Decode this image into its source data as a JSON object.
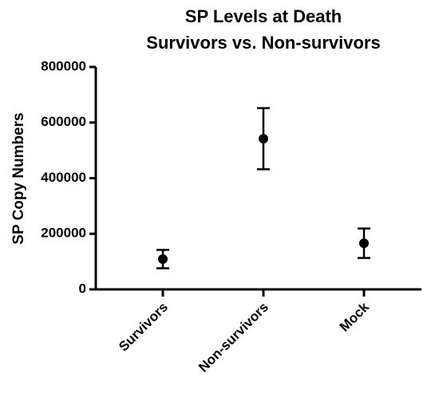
{
  "chart_data": {
    "type": "errorbar",
    "title": "SP Levels at Death",
    "subtitle": "Survivors vs. Non-survivors",
    "y_label": "SP Copy Numbers",
    "categories": [
      "Survivors",
      "Non-survivors",
      "Mock"
    ],
    "values": [
      109000,
      542000,
      166000
    ],
    "errors": [
      33000,
      110000,
      53000
    ],
    "color": "#000000",
    "ylim": [
      0,
      800000
    ],
    "yticks": [
      0,
      200000,
      400000,
      600000,
      800000
    ],
    "grid": false
  }
}
